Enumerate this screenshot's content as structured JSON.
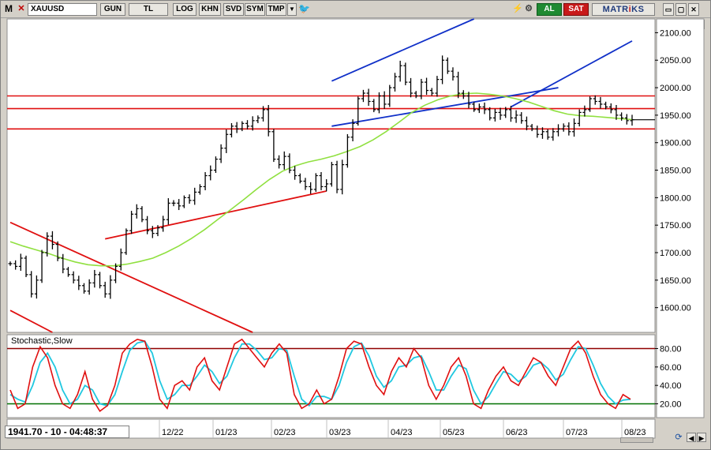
{
  "toolbar": {
    "app_icon": "M",
    "close_icon": "✕",
    "symbol": "XAUUSD",
    "period": "GUN",
    "currency": "TL",
    "log": "LOG",
    "khn": "KHN",
    "svd": "SVD",
    "sym": "SYM",
    "tmp": "TMP",
    "dropdown_icon": "▼",
    "bird_icon": "🐦",
    "lightning_icon": "⚡",
    "chain_icon": "⚙",
    "buy": "AL",
    "sell": "SAT",
    "brand_a": "MATR",
    "brand_b": "i",
    "brand_c": "KS",
    "minimize": "▭",
    "maximize": "▢",
    "close": "✕",
    "help": "?"
  },
  "status_readout": "1941.70 - 10 - 04:48:37",
  "colors": {
    "bg": "#ffffff",
    "grid": "#c8c8c8",
    "price": "#000000",
    "ma": "#90e040",
    "support_resistance": "#e01010",
    "channel": "#1030c8",
    "stoch_k": "#e01010",
    "stoch_d": "#20c8e0",
    "stoch_upper": "#900000",
    "stoch_lower": "#007000"
  },
  "chart_data": [
    {
      "type": "line",
      "variant": "ohlc-bars",
      "symbol": "XAUUSD",
      "x_axis_labels": [
        "12/22",
        "01/23",
        "02/23",
        "03/23",
        "04/23",
        "05/23",
        "06/23",
        "07/23",
        "08/23"
      ],
      "y_ticks": [
        1600,
        1650,
        1700,
        1750,
        1800,
        1850,
        1900,
        1950,
        2000,
        2050,
        2100
      ],
      "ylim": [
        1555,
        2125
      ],
      "grid": false,
      "series": [
        {
          "values": [
            1680,
            1675,
            1690,
            1660,
            1625,
            1650,
            1700,
            1730,
            1715,
            1690,
            1670,
            1660,
            1650,
            1640,
            1630,
            1645,
            1660,
            1640,
            1625,
            1650,
            1675,
            1700,
            1740,
            1770,
            1780,
            1760,
            1740,
            1735,
            1745,
            1760,
            1790,
            1790,
            1785,
            1800,
            1795,
            1810,
            1820,
            1840,
            1850,
            1870,
            1890,
            1915,
            1930,
            1925,
            1935,
            1930,
            1940,
            1945,
            1960,
            1920,
            1870,
            1860,
            1875,
            1850,
            1840,
            1830,
            1820,
            1815,
            1840,
            1820,
            1825,
            1860,
            1815,
            1860,
            1910,
            1935,
            1980,
            1990,
            1975,
            1960,
            1985,
            1970,
            2000,
            2020,
            2040,
            2010,
            1990,
            1985,
            2010,
            1995,
            1990,
            2015,
            2050,
            2030,
            2020,
            1990,
            1985,
            1970,
            1960,
            1965,
            1960,
            1945,
            1955,
            1950,
            1960,
            1945,
            1950,
            1940,
            1930,
            1925,
            1915,
            1920,
            1910,
            1920,
            1925,
            1930,
            1920,
            1935,
            1955,
            1960,
            1980,
            1975,
            1970,
            1965,
            1960,
            1950,
            1945,
            1940,
            1941.7
          ]
        },
        {
          "name": "MA",
          "values": [
            1720,
            1712,
            1705,
            1698,
            1690,
            1683,
            1678,
            1676,
            1676,
            1679,
            1684,
            1690,
            1700,
            1712,
            1726,
            1742,
            1760,
            1778,
            1796,
            1815,
            1833,
            1848,
            1858,
            1865,
            1870,
            1876,
            1884,
            1893,
            1905,
            1920,
            1937,
            1955,
            1968,
            1978,
            1985,
            1989,
            1990,
            1988,
            1985,
            1980,
            1974,
            1966,
            1958,
            1952,
            1949,
            1948,
            1946,
            1944,
            1942
          ]
        }
      ],
      "hlines": [
        1985,
        1962,
        1925
      ],
      "annotations": [
        "channel-lower",
        "channel-upper",
        "trend-upper",
        "support-1",
        "support-2",
        "support-3",
        "resistance-downtrend"
      ]
    },
    {
      "type": "line",
      "title": "Stochastic,Slow",
      "y_ticks": [
        20,
        40,
        60,
        80
      ],
      "ylim": [
        5,
        95
      ],
      "hlines": [
        80,
        20
      ],
      "series": [
        {
          "name": "%K",
          "values": [
            35,
            15,
            20,
            60,
            82,
            70,
            40,
            20,
            15,
            30,
            55,
            25,
            12,
            18,
            40,
            75,
            85,
            90,
            88,
            60,
            25,
            15,
            40,
            45,
            35,
            60,
            70,
            45,
            35,
            60,
            85,
            90,
            80,
            70,
            60,
            75,
            85,
            75,
            30,
            15,
            20,
            35,
            20,
            25,
            50,
            80,
            88,
            85,
            60,
            40,
            30,
            55,
            70,
            60,
            80,
            70,
            40,
            25,
            40,
            60,
            70,
            50,
            20,
            15,
            35,
            50,
            60,
            45,
            40,
            55,
            70,
            65,
            50,
            40,
            60,
            80,
            88,
            75,
            50,
            30,
            20,
            15,
            30,
            25
          ]
        },
        {
          "name": "%D",
          "values": [
            30,
            25,
            22,
            40,
            65,
            75,
            60,
            35,
            20,
            25,
            40,
            35,
            20,
            18,
            30,
            55,
            78,
            86,
            88,
            75,
            45,
            25,
            30,
            40,
            40,
            50,
            62,
            55,
            42,
            50,
            70,
            85,
            85,
            78,
            68,
            70,
            80,
            78,
            50,
            25,
            18,
            28,
            28,
            25,
            40,
            65,
            82,
            86,
            72,
            50,
            38,
            45,
            60,
            62,
            70,
            72,
            55,
            35,
            35,
            50,
            62,
            58,
            35,
            20,
            28,
            42,
            55,
            52,
            44,
            50,
            62,
            65,
            58,
            46,
            52,
            68,
            82,
            80,
            62,
            42,
            28,
            20,
            24,
            25
          ]
        }
      ]
    }
  ]
}
